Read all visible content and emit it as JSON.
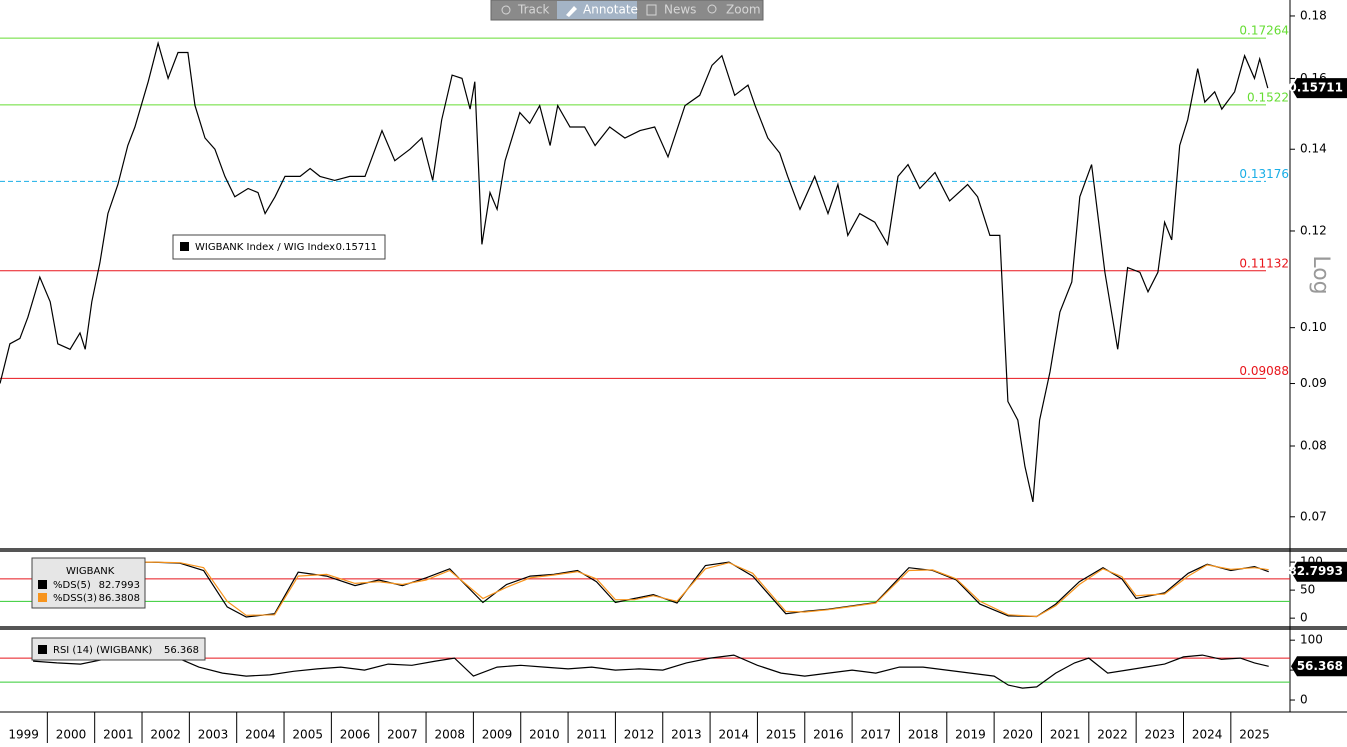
{
  "toolbar": [
    "Track",
    "Annotate",
    "News",
    "Zoom"
  ],
  "chart_data": [
    {
      "type": "line",
      "log_scale": true,
      "y_axis_label": "Log",
      "xlim": [
        1999,
        2026.25
      ],
      "xticks": [
        1999,
        2000,
        2001,
        2002,
        2003,
        2004,
        2005,
        2006,
        2007,
        2008,
        2009,
        2010,
        2011,
        2012,
        2013,
        2014,
        2015,
        2016,
        2017,
        2018,
        2019,
        2020,
        2021,
        2022,
        2023,
        2024,
        2025
      ],
      "ylim": [
        0.066,
        0.1855
      ],
      "yticks": [
        0.07,
        0.08,
        0.09,
        {
          "value": 0.1,
          "label": "0.10"
        },
        0.12,
        0.14,
        0.16,
        0.18
      ],
      "levels": [
        {
          "value": 0.17264,
          "color": "#66dd33",
          "dashed": false
        },
        {
          "value": 0.1522,
          "color": "#66dd33",
          "dashed": false
        },
        {
          "value": 0.13176,
          "color": "#1aaee6",
          "dashed": true
        },
        {
          "value": 0.11132,
          "color": "#e8151b",
          "dashed": false
        },
        {
          "value": 0.09088,
          "color": "#e8151b",
          "dashed": false
        }
      ],
      "series": [
        {
          "name": "WIGBANK Index / WIG Index",
          "color": "#000000",
          "x": [
            1999.0,
            1999.21,
            1999.42,
            1999.59,
            1999.84,
            2000.06,
            2000.22,
            2000.48,
            2000.69,
            2000.8,
            2000.94,
            2001.11,
            2001.28,
            2001.49,
            2001.7,
            2001.85,
            2002.13,
            2002.34,
            2002.55,
            2002.76,
            2002.97,
            2003.12,
            2003.33,
            2003.54,
            2003.75,
            2003.96,
            2004.24,
            2004.45,
            2004.6,
            2004.81,
            2005.02,
            2005.34,
            2005.55,
            2005.76,
            2006.07,
            2006.39,
            2006.71,
            2007.07,
            2007.34,
            2007.66,
            2007.91,
            2008.14,
            2008.33,
            2008.55,
            2008.76,
            2008.93,
            2009.03,
            2009.18,
            2009.35,
            2009.5,
            2009.67,
            2009.98,
            2010.19,
            2010.4,
            2010.62,
            2010.78,
            2011.04,
            2011.35,
            2011.57,
            2011.88,
            2012.2,
            2012.52,
            2012.83,
            2013.11,
            2013.47,
            2013.78,
            2014.04,
            2014.25,
            2014.52,
            2014.8,
            2014.95,
            2015.22,
            2015.47,
            2015.64,
            2015.9,
            2016.21,
            2016.49,
            2016.7,
            2016.91,
            2017.16,
            2017.48,
            2017.75,
            2017.97,
            2018.18,
            2018.43,
            2018.75,
            2019.06,
            2019.44,
            2019.65,
            2019.91,
            2020.12,
            2020.29,
            2020.5,
            2020.65,
            2020.82,
            2020.96,
            2021.18,
            2021.39,
            2021.64,
            2021.81,
            2022.06,
            2022.34,
            2022.61,
            2022.82,
            2023.08,
            2023.25,
            2023.46,
            2023.6,
            2023.75,
            2023.92,
            2024.09,
            2024.3,
            2024.45,
            2024.66,
            2024.81,
            2025.08,
            2025.29,
            2025.5,
            2025.61,
            2025.78
          ],
          "values": [
            0.09,
            0.097,
            0.098,
            0.102,
            0.11,
            0.105,
            0.097,
            0.096,
            0.099,
            0.096,
            0.105,
            0.113,
            0.124,
            0.131,
            0.141,
            0.146,
            0.159,
            0.171,
            0.16,
            0.168,
            0.168,
            0.152,
            0.143,
            0.14,
            0.133,
            0.128,
            0.13,
            0.129,
            0.124,
            0.128,
            0.133,
            0.133,
            0.135,
            0.133,
            0.132,
            0.133,
            0.133,
            0.145,
            0.137,
            0.14,
            0.143,
            0.132,
            0.148,
            0.161,
            0.16,
            0.151,
            0.159,
            0.117,
            0.129,
            0.125,
            0.137,
            0.15,
            0.147,
            0.152,
            0.141,
            0.152,
            0.146,
            0.146,
            0.141,
            0.146,
            0.143,
            0.145,
            0.146,
            0.138,
            0.152,
            0.155,
            0.164,
            0.167,
            0.155,
            0.158,
            0.152,
            0.143,
            0.139,
            0.133,
            0.125,
            0.133,
            0.124,
            0.131,
            0.119,
            0.124,
            0.122,
            0.117,
            0.133,
            0.136,
            0.13,
            0.134,
            0.127,
            0.131,
            0.128,
            0.119,
            0.119,
            0.087,
            0.084,
            0.077,
            0.072,
            0.084,
            0.092,
            0.103,
            0.109,
            0.128,
            0.136,
            0.111,
            0.096,
            0.112,
            0.111,
            0.107,
            0.111,
            0.122,
            0.118,
            0.141,
            0.148,
            0.163,
            0.153,
            0.156,
            0.151,
            0.156,
            0.167,
            0.16,
            0.166,
            0.15711
          ]
        }
      ]
    },
    {
      "type": "line",
      "title": "WIGBANK",
      "xlim": [
        1999,
        2026.25
      ],
      "ylim": [
        -14,
        118
      ],
      "yticks": [
        0,
        50,
        100
      ],
      "levels": [
        {
          "value": 70,
          "color": "#e8151b",
          "dashed": false
        },
        {
          "value": 30,
          "color": "#33cc33",
          "dashed": false
        }
      ],
      "series": [
        {
          "name": "%DS(5)",
          "color": "#000000",
          "x": [
            1999.7,
            2000.3,
            2000.9,
            2001.5,
            2002.2,
            2002.8,
            2003.3,
            2003.8,
            2004.2,
            2004.8,
            2005.3,
            2005.9,
            2006.5,
            2007.0,
            2007.5,
            2008.0,
            2008.5,
            2009.2,
            2009.7,
            2010.2,
            2010.7,
            2011.2,
            2011.6,
            2012.0,
            2012.4,
            2012.8,
            2013.3,
            2013.9,
            2014.4,
            2014.9,
            2015.6,
            2016.0,
            2016.5,
            2017.0,
            2017.5,
            2018.2,
            2018.7,
            2019.2,
            2019.7,
            2020.3,
            2020.9,
            2021.3,
            2021.8,
            2022.3,
            2022.7,
            2023.0,
            2023.6,
            2024.1,
            2024.5,
            2025.0,
            2025.5,
            2025.8
          ],
          "values": [
            100,
            100,
            100,
            100,
            100,
            98,
            85,
            20,
            2,
            8,
            82,
            75,
            58,
            68,
            58,
            72,
            88,
            28,
            60,
            75,
            78,
            85,
            65,
            28,
            35,
            42,
            27,
            94,
            100,
            75,
            8,
            12,
            16,
            22,
            28,
            90,
            85,
            68,
            25,
            4,
            3,
            25,
            65,
            90,
            70,
            35,
            45,
            80,
            96,
            85,
            92,
            82.7993
          ]
        },
        {
          "name": "%DSS(3)",
          "color": "#f7941d",
          "x": [
            1999.7,
            2000.3,
            2000.9,
            2001.5,
            2002.2,
            2002.8,
            2003.3,
            2003.8,
            2004.2,
            2004.8,
            2005.3,
            2005.9,
            2006.5,
            2007.0,
            2007.5,
            2008.0,
            2008.5,
            2009.2,
            2009.7,
            2010.2,
            2010.7,
            2011.2,
            2011.6,
            2012.0,
            2012.4,
            2012.8,
            2013.3,
            2013.9,
            2014.4,
            2014.9,
            2015.6,
            2016.0,
            2016.5,
            2017.0,
            2017.5,
            2018.2,
            2018.7,
            2019.2,
            2019.7,
            2020.3,
            2020.9,
            2021.3,
            2021.8,
            2022.3,
            2022.7,
            2023.0,
            2023.6,
            2024.1,
            2024.5,
            2025.0,
            2025.5,
            2025.8
          ],
          "values": [
            100,
            100,
            100,
            100,
            100,
            99,
            90,
            30,
            5,
            6,
            75,
            78,
            62,
            65,
            60,
            68,
            85,
            35,
            55,
            72,
            77,
            83,
            70,
            33,
            33,
            40,
            30,
            88,
            99,
            80,
            12,
            11,
            15,
            21,
            27,
            85,
            86,
            70,
            30,
            6,
            3,
            22,
            60,
            88,
            74,
            40,
            43,
            75,
            95,
            87,
            90,
            86.3808
          ]
        }
      ]
    },
    {
      "type": "line",
      "xlim": [
        1999,
        2026.25
      ],
      "ylim": [
        -20,
        117
      ],
      "yticks": [
        0,
        50,
        100
      ],
      "levels": [
        {
          "value": 70,
          "color": "#e8151b",
          "dashed": false
        },
        {
          "value": 30,
          "color": "#33cc33",
          "dashed": false
        }
      ],
      "series": [
        {
          "name": "RSI (14) (WIGBANK)",
          "color": "#000000",
          "x": [
            1999.7,
            2000.2,
            2000.7,
            2001.2,
            2001.7,
            2002.2,
            2002.7,
            2003.2,
            2003.7,
            2004.2,
            2004.7,
            2005.2,
            2005.7,
            2006.2,
            2006.7,
            2007.2,
            2007.7,
            2008.2,
            2008.6,
            2009.0,
            2009.5,
            2010.0,
            2010.5,
            2011.0,
            2011.5,
            2012.0,
            2012.5,
            2013.0,
            2013.5,
            2014.0,
            2014.5,
            2015.0,
            2015.5,
            2016.0,
            2016.5,
            2017.0,
            2017.5,
            2018.0,
            2018.5,
            2019.0,
            2019.5,
            2020.0,
            2020.3,
            2020.6,
            2020.9,
            2021.3,
            2021.7,
            2022.0,
            2022.4,
            2022.8,
            2023.2,
            2023.6,
            2024.0,
            2024.4,
            2024.8,
            2025.2,
            2025.5,
            2025.8
          ],
          "values": [
            65,
            62,
            60,
            68,
            72,
            70,
            72,
            55,
            45,
            40,
            42,
            48,
            52,
            55,
            50,
            60,
            58,
            65,
            70,
            40,
            55,
            58,
            55,
            52,
            55,
            50,
            52,
            50,
            62,
            70,
            75,
            58,
            45,
            40,
            45,
            50,
            45,
            55,
            55,
            50,
            45,
            40,
            25,
            20,
            22,
            45,
            62,
            70,
            45,
            50,
            55,
            60,
            72,
            75,
            68,
            70,
            62,
            56.368
          ]
        }
      ]
    }
  ]
}
